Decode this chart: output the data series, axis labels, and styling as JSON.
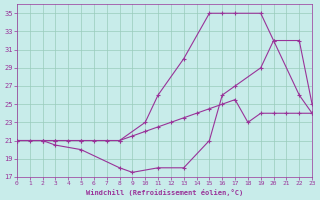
{
  "xlabel": "Windchill (Refroidissement éolien,°C)",
  "background_color": "#c8ecea",
  "line_color": "#993399",
  "grid_color": "#99ccbb",
  "ylim": [
    17,
    36
  ],
  "xlim": [
    0,
    23
  ],
  "yticks": [
    17,
    19,
    21,
    23,
    25,
    27,
    29,
    31,
    33,
    35
  ],
  "xticks": [
    0,
    1,
    2,
    3,
    4,
    5,
    6,
    7,
    8,
    9,
    10,
    11,
    12,
    13,
    14,
    15,
    16,
    17,
    18,
    19,
    20,
    21,
    22,
    23
  ],
  "line1_x": [
    0,
    1,
    2,
    3,
    4,
    5,
    6,
    7,
    8,
    9,
    10,
    11,
    12,
    13,
    14,
    15,
    16,
    17,
    18,
    19,
    20,
    21,
    22,
    23
  ],
  "line1_y": [
    21,
    21,
    21,
    21,
    21,
    21,
    21,
    21,
    21,
    21.5,
    22,
    22.5,
    23,
    23.5,
    24,
    24.5,
    25,
    25.5,
    23,
    24,
    24,
    24,
    24,
    24
  ],
  "line2_x": [
    0,
    2,
    3,
    5,
    8,
    9,
    11,
    13,
    15,
    16,
    17,
    19,
    20,
    22,
    23
  ],
  "line2_y": [
    21,
    21,
    20.5,
    20,
    18,
    17.5,
    18,
    18,
    21,
    26,
    27,
    29,
    32,
    32,
    25
  ],
  "line3_x": [
    0,
    2,
    3,
    5,
    8,
    10,
    11,
    13,
    15,
    16,
    17,
    19,
    20,
    22,
    23
  ],
  "line3_y": [
    21,
    21,
    21,
    21,
    21,
    23,
    26,
    30,
    35,
    35,
    35,
    35,
    32,
    26,
    24
  ]
}
